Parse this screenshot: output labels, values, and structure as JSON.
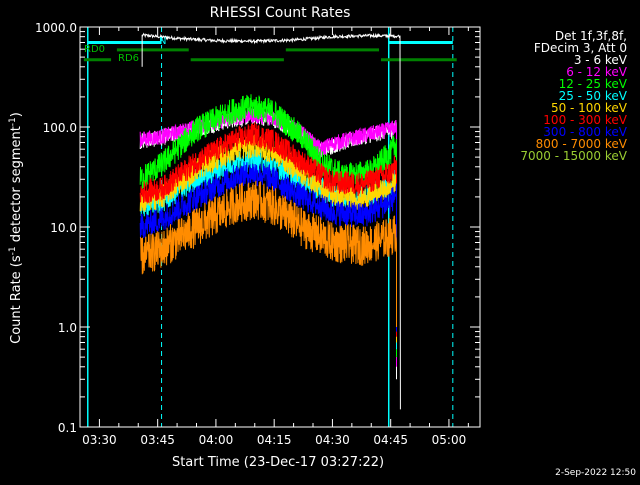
{
  "chart_data": {
    "type": "line",
    "title": "RHESSI Count Rates",
    "xlabel": "Start Time (23-Dec-17 03:27:22)",
    "ylabel_parts": [
      "Count Rate (s",
      "-1",
      " detector segment",
      "-1",
      ")"
    ],
    "yscale": "log",
    "ylim": [
      0.1,
      1000
    ],
    "xlim": [
      "03:25:00",
      "05:08:00"
    ],
    "y_ticks": [
      "0.1",
      "1.0",
      "10.0",
      "100.0",
      "1000.0"
    ],
    "x_ticks": [
      "03:30",
      "03:45",
      "04:00",
      "04:15",
      "04:30",
      "04:45",
      "05:00"
    ],
    "legend_position": "right",
    "legend_header": [
      "Det 1f,3f,8f,",
      "FDecim 3, Att 0"
    ],
    "timestamp": "2-Sep-2022 12:50",
    "colors": {
      "background": "#000000",
      "axes": "#ffffff",
      "attenuator": "#ffffff",
      "night": "#00ffff",
      "decimation": "#008000"
    },
    "flag_labels": {
      "night": "N",
      "decimation_0": "RD0",
      "decimation_6": "RD6"
    },
    "flags": {
      "night_vlines": [
        "03:27:00",
        "04:44:30"
      ],
      "night_dashed_vlines": [
        "03:46:00",
        "05:01:00"
      ],
      "night_bar": [
        [
          "03:27:00",
          "03:46:00"
        ],
        [
          "04:44:30",
          "05:01:00"
        ]
      ],
      "decimation_0_bar": [
        [
          "03:34:30",
          "03:53:00"
        ],
        [
          "04:18:00",
          "04:42:00"
        ]
      ],
      "decimation_6_bar": [
        [
          "03:26:00",
          "03:33:00"
        ],
        [
          "03:53:30",
          "04:17:30"
        ],
        [
          "04:42:30",
          "05:02:00"
        ]
      ]
    },
    "attenuator_trace": [
      [
        "03:41:00",
        830
      ],
      [
        "03:50:00",
        770
      ],
      [
        "04:00:00",
        730
      ],
      [
        "04:10:00",
        720
      ],
      [
        "04:20:00",
        740
      ],
      [
        "04:30:00",
        800
      ],
      [
        "04:40:00",
        820
      ],
      [
        "04:47:00",
        810
      ],
      [
        "04:47:30",
        800
      ]
    ],
    "series": [
      {
        "name": "3 - 6 keV",
        "color": "#ffffff",
        "noise": 0.08,
        "points": [
          [
            "03:40:30",
            72
          ],
          [
            "03:46:00",
            78
          ],
          [
            "03:55:00",
            95
          ],
          [
            "04:05:00",
            120
          ],
          [
            "04:10:00",
            128
          ],
          [
            "04:15:00",
            118
          ],
          [
            "04:22:00",
            85
          ],
          [
            "04:27:00",
            58
          ],
          [
            "04:30:00",
            65
          ],
          [
            "04:38:00",
            80
          ],
          [
            "04:45:00",
            92
          ],
          [
            "04:46:30",
            100
          ]
        ]
      },
      {
        "name": "6 - 12 keV",
        "color": "#ff00ff",
        "noise": 0.08,
        "points": [
          [
            "03:40:30",
            75
          ],
          [
            "03:46:00",
            80
          ],
          [
            "03:55:00",
            100
          ],
          [
            "04:05:00",
            125
          ],
          [
            "04:10:00",
            132
          ],
          [
            "04:15:00",
            122
          ],
          [
            "04:22:00",
            88
          ],
          [
            "04:27:00",
            60
          ],
          [
            "04:30:00",
            68
          ],
          [
            "04:38:00",
            82
          ],
          [
            "04:45:00",
            95
          ],
          [
            "04:46:30",
            102
          ]
        ]
      },
      {
        "name": "12 - 25 keV",
        "color": "#00ff00",
        "noise": 0.13,
        "points": [
          [
            "03:40:30",
            30
          ],
          [
            "03:46:00",
            42
          ],
          [
            "03:55:00",
            95
          ],
          [
            "04:05:00",
            150
          ],
          [
            "04:10:00",
            160
          ],
          [
            "04:15:00",
            140
          ],
          [
            "04:22:00",
            80
          ],
          [
            "04:27:00",
            45
          ],
          [
            "04:33:00",
            32
          ],
          [
            "04:40:00",
            36
          ],
          [
            "04:45:00",
            55
          ],
          [
            "04:46:30",
            70
          ]
        ]
      },
      {
        "name": "25 - 50 keV",
        "color": "#00ffff",
        "noise": 0.12,
        "points": [
          [
            "03:40:30",
            16
          ],
          [
            "03:46:00",
            18
          ],
          [
            "03:55:00",
            30
          ],
          [
            "04:05:00",
            45
          ],
          [
            "04:10:00",
            47
          ],
          [
            "04:15:00",
            42
          ],
          [
            "04:22:00",
            30
          ],
          [
            "04:30:00",
            21
          ],
          [
            "04:38:00",
            20
          ],
          [
            "04:45:00",
            26
          ],
          [
            "04:46:30",
            32
          ]
        ]
      },
      {
        "name": "50 - 100 keV",
        "color": "#ffd700",
        "noise": 0.12,
        "points": [
          [
            "03:40:30",
            18
          ],
          [
            "03:46:00",
            20
          ],
          [
            "03:55:00",
            38
          ],
          [
            "04:05:00",
            60
          ],
          [
            "04:10:00",
            65
          ],
          [
            "04:15:00",
            56
          ],
          [
            "04:22:00",
            35
          ],
          [
            "04:30:00",
            21
          ],
          [
            "04:38:00",
            19
          ],
          [
            "04:45:00",
            25
          ],
          [
            "04:46:30",
            30
          ]
        ]
      },
      {
        "name": "100 - 300 keV",
        "color": "#ff0000",
        "noise": 0.12,
        "points": [
          [
            "03:40:30",
            22
          ],
          [
            "03:46:00",
            24
          ],
          [
            "03:55:00",
            45
          ],
          [
            "04:05:00",
            75
          ],
          [
            "04:10:00",
            85
          ],
          [
            "04:15:00",
            72
          ],
          [
            "04:22:00",
            45
          ],
          [
            "04:30:00",
            28
          ],
          [
            "04:38:00",
            27
          ],
          [
            "04:45:00",
            35
          ],
          [
            "04:46:30",
            42
          ]
        ]
      },
      {
        "name": "300 - 800 keV",
        "color": "#0000ff",
        "noise": 0.13,
        "points": [
          [
            "03:40:30",
            10
          ],
          [
            "03:46:00",
            12
          ],
          [
            "03:55:00",
            20
          ],
          [
            "04:05:00",
            32
          ],
          [
            "04:10:00",
            35
          ],
          [
            "04:15:00",
            30
          ],
          [
            "04:22:00",
            20
          ],
          [
            "04:30:00",
            14
          ],
          [
            "04:38:00",
            13
          ],
          [
            "04:45:00",
            18
          ],
          [
            "04:46:30",
            22
          ]
        ]
      },
      {
        "name": "800 - 7000 keV",
        "color": "#ff8c00",
        "noise": 0.2,
        "points": [
          [
            "03:40:30",
            5
          ],
          [
            "03:46:00",
            6
          ],
          [
            "03:55:00",
            10
          ],
          [
            "04:05:00",
            17
          ],
          [
            "04:10:00",
            19
          ],
          [
            "04:15:00",
            16
          ],
          [
            "04:22:00",
            10
          ],
          [
            "04:30:00",
            7
          ],
          [
            "04:38:00",
            6.5
          ],
          [
            "04:45:00",
            8
          ],
          [
            "04:46:30",
            9
          ]
        ]
      },
      {
        "name": "7000 - 15000 keV",
        "color": "#9acd32",
        "noise": 0.0,
        "points": []
      }
    ]
  }
}
